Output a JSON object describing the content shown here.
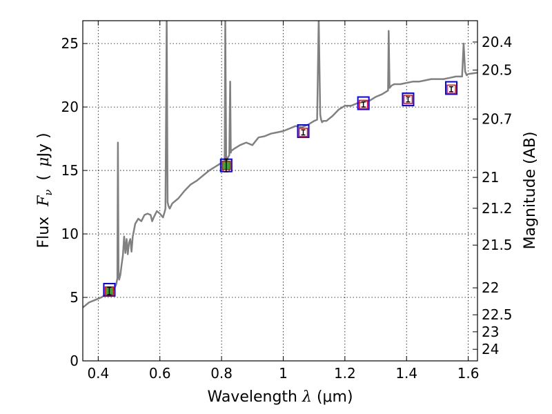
{
  "chart_data": {
    "type": "line",
    "xlabel_prefix": "Wavelength",
    "xlabel_symbol": "λ",
    "xlabel_unit": "(μm)",
    "ylabel_prefix": "Flux",
    "ylabel_symbol": "F",
    "ylabel_subscript": "ν",
    "ylabel_unit_open": "(",
    "ylabel_unit_mu": "μ",
    "ylabel_unit_rest": "Jy )",
    "y2label": "Magnitude (AB)",
    "xlim": [
      0.35,
      1.63
    ],
    "ylim": [
      0,
      26.8
    ],
    "grid": true,
    "x_ticks": [
      0.4,
      0.6,
      0.8,
      1.0,
      1.2,
      1.4,
      1.6
    ],
    "x_tick_labels": [
      "0.4",
      "0.6",
      "0.8",
      "1",
      "1.2",
      "1.4",
      "1.6"
    ],
    "y_ticks": [
      0,
      5,
      10,
      15,
      20,
      25
    ],
    "y_tick_labels": [
      "0",
      "5",
      "10",
      "15",
      "20",
      "25"
    ],
    "mag_ticks": [
      20.4,
      20.5,
      20.7,
      21,
      21.2,
      21.5,
      22,
      22.5,
      23,
      24
    ],
    "mag_tick_labels": [
      "20.4",
      "20.5",
      "20.7",
      "21",
      "21.2",
      "21.5",
      "22",
      "22.5",
      "23",
      "24"
    ],
    "series": [
      {
        "color": "#808080",
        "x": [
          0.35,
          0.37,
          0.39,
          0.41,
          0.43,
          0.45,
          0.458,
          0.462,
          0.464,
          0.466,
          0.468,
          0.472,
          0.476,
          0.48,
          0.484,
          0.488,
          0.492,
          0.496,
          0.5,
          0.504,
          0.508,
          0.512,
          0.52,
          0.53,
          0.54,
          0.55,
          0.56,
          0.57,
          0.575,
          0.58,
          0.59,
          0.6,
          0.61,
          0.615,
          0.618,
          0.622,
          0.625,
          0.628,
          0.632,
          0.64,
          0.66,
          0.68,
          0.7,
          0.72,
          0.74,
          0.76,
          0.78,
          0.8,
          0.81,
          0.812,
          0.815,
          0.818,
          0.82,
          0.825,
          0.828,
          0.83,
          0.832,
          0.835,
          0.84,
          0.86,
          0.88,
          0.9,
          0.92,
          0.94,
          0.96,
          0.98,
          1.0,
          1.02,
          1.04,
          1.06,
          1.08,
          1.1,
          1.11,
          1.115,
          1.12,
          1.123,
          1.126,
          1.13,
          1.14,
          1.16,
          1.18,
          1.2,
          1.22,
          1.24,
          1.26,
          1.28,
          1.3,
          1.32,
          1.34,
          1.342,
          1.345,
          1.348,
          1.352,
          1.36,
          1.38,
          1.4,
          1.42,
          1.44,
          1.46,
          1.48,
          1.5,
          1.52,
          1.54,
          1.56,
          1.58,
          1.585,
          1.59,
          1.595,
          1.6,
          1.63
        ],
        "y": [
          4.2,
          4.6,
          4.8,
          5.0,
          5.3,
          5.6,
          6.0,
          6.5,
          17.2,
          7.0,
          6.4,
          6.8,
          7.6,
          8.3,
          9.8,
          8.5,
          9.6,
          8.4,
          9.3,
          9.6,
          8.6,
          9.8,
          10.8,
          11.2,
          11.0,
          11.5,
          11.6,
          11.5,
          11.0,
          11.3,
          11.8,
          11.6,
          11.3,
          11.7,
          12.0,
          27.0,
          12.5,
          12.2,
          12.0,
          12.4,
          12.8,
          13.4,
          13.9,
          14.2,
          14.6,
          15.0,
          15.3,
          15.6,
          15.5,
          26.8,
          15.8,
          15.8,
          16.0,
          16.2,
          22.0,
          16.4,
          16.6,
          16.6,
          16.7,
          17.0,
          17.2,
          17.0,
          17.6,
          17.7,
          17.9,
          18.0,
          18.1,
          18.3,
          18.5,
          18.4,
          18.6,
          18.9,
          19.0,
          27.0,
          19.4,
          19.0,
          18.8,
          18.9,
          18.9,
          19.3,
          19.8,
          20.1,
          20.1,
          20.3,
          20.4,
          20.5,
          20.8,
          21.0,
          21.3,
          26.0,
          21.5,
          21.6,
          21.7,
          21.8,
          21.8,
          21.9,
          22.0,
          22.0,
          22.1,
          22.2,
          22.2,
          22.2,
          22.3,
          22.4,
          22.4,
          25.0,
          22.8,
          22.5,
          22.6,
          22.7
        ]
      }
    ],
    "photometry": [
      {
        "x": 0.436,
        "y": 5.5,
        "model": 5.6,
        "err": 0.3,
        "fill": "#33aa33"
      },
      {
        "x": 0.815,
        "y": 15.4,
        "model": 15.4,
        "err": 0.5,
        "fill": "#33aa33"
      },
      {
        "x": 1.065,
        "y": 18.0,
        "model": 18.1,
        "err": 0.2,
        "fill": "none"
      },
      {
        "x": 1.26,
        "y": 20.2,
        "model": 20.3,
        "err": 0.2,
        "fill": "none"
      },
      {
        "x": 1.405,
        "y": 20.6,
        "model": 20.6,
        "err": 0.2,
        "fill": "none"
      },
      {
        "x": 1.545,
        "y": 21.4,
        "model": 21.5,
        "err": 0.2,
        "fill": "none"
      }
    ],
    "colors": {
      "model_box": "#0000ff",
      "data_box": "#ff0000",
      "spectrum": "#808080"
    }
  }
}
